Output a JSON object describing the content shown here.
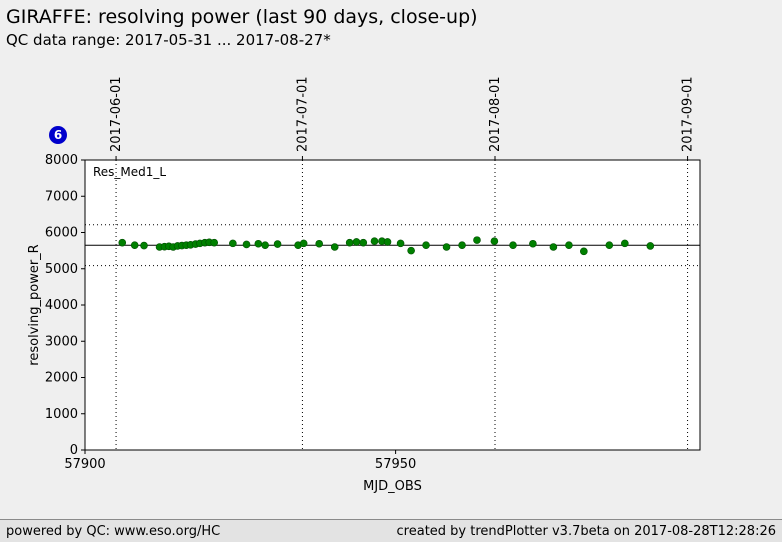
{
  "header": {
    "title": "GIRAFFE: resolving power (last 90 days, close-up)",
    "subtitle": "QC data range: 2017-05-31 ... 2017-08-27*"
  },
  "badge": {
    "label": "6",
    "color": "#0000cc"
  },
  "footer": {
    "left": "powered by QC: www.eso.org/HC",
    "right": "created by trendPlotter v3.7beta on 2017-08-28T12:28:26"
  },
  "chart_data": {
    "type": "scatter",
    "legend": "Res_Med1_L",
    "xlabel": "MJD_OBS",
    "ylabel": "resolving_power_R",
    "xlim": [
      57900,
      57999
    ],
    "ylim": [
      0,
      8000
    ],
    "yticks": [
      0,
      1000,
      2000,
      3000,
      4000,
      5000,
      6000,
      7000,
      8000
    ],
    "xticks": [
      57900,
      57950
    ],
    "date_marks": [
      {
        "label": "2017-06-01",
        "mjd": 57905
      },
      {
        "label": "2017-07-01",
        "mjd": 57935
      },
      {
        "label": "2017-08-01",
        "mjd": 57966
      },
      {
        "label": "2017-09-01",
        "mjd": 57997
      }
    ],
    "median": 5650,
    "thresholds": [
      5085,
      6215
    ],
    "point_color": "#008000",
    "points": [
      [
        57906.0,
        5720
      ],
      [
        57908.0,
        5650
      ],
      [
        57909.5,
        5640
      ],
      [
        57912.0,
        5600
      ],
      [
        57912.8,
        5610
      ],
      [
        57913.5,
        5620
      ],
      [
        57914.2,
        5600
      ],
      [
        57914.9,
        5630
      ],
      [
        57915.6,
        5640
      ],
      [
        57916.3,
        5650
      ],
      [
        57917.0,
        5660
      ],
      [
        57917.8,
        5680
      ],
      [
        57918.5,
        5700
      ],
      [
        57919.3,
        5720
      ],
      [
        57920.0,
        5730
      ],
      [
        57920.8,
        5720
      ],
      [
        57923.8,
        5700
      ],
      [
        57926.0,
        5670
      ],
      [
        57927.9,
        5690
      ],
      [
        57929.0,
        5650
      ],
      [
        57931.0,
        5680
      ],
      [
        57934.3,
        5650
      ],
      [
        57935.2,
        5700
      ],
      [
        57937.7,
        5690
      ],
      [
        57940.2,
        5600
      ],
      [
        57942.6,
        5720
      ],
      [
        57943.7,
        5740
      ],
      [
        57944.8,
        5720
      ],
      [
        57946.6,
        5760
      ],
      [
        57947.8,
        5760
      ],
      [
        57948.7,
        5740
      ],
      [
        57950.8,
        5700
      ],
      [
        57952.5,
        5500
      ],
      [
        57954.9,
        5650
      ],
      [
        57958.2,
        5600
      ],
      [
        57960.7,
        5650
      ],
      [
        57963.1,
        5790
      ],
      [
        57965.9,
        5760
      ],
      [
        57968.9,
        5650
      ],
      [
        57972.1,
        5690
      ],
      [
        57975.4,
        5600
      ],
      [
        57977.9,
        5650
      ],
      [
        57980.3,
        5480
      ],
      [
        57984.4,
        5650
      ],
      [
        57986.9,
        5700
      ],
      [
        57991.0,
        5630
      ]
    ]
  }
}
